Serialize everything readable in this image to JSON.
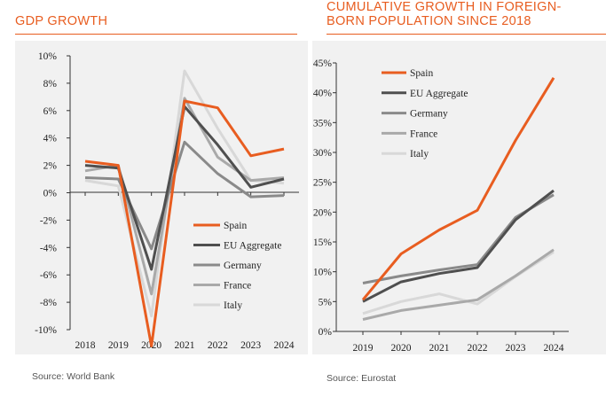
{
  "chart_data": [
    {
      "type": "line",
      "title": "GDP GROWTH",
      "source": "Source: World Bank",
      "xlabel": "",
      "ylabel": "",
      "x": [
        "2018",
        "2019",
        "2020",
        "2021",
        "2022",
        "2023",
        "2024"
      ],
      "ylim": [
        -10,
        10
      ],
      "yticks": [
        10,
        8,
        6,
        4,
        2,
        0,
        -2,
        -4,
        -6,
        -8,
        -10
      ],
      "ytick_labels": [
        "10%",
        "8%",
        "6%",
        "4%",
        "2%",
        "0%",
        "-2%",
        "-4%",
        "-6%",
        "-8%",
        "-10%"
      ],
      "grid": false,
      "legend_position": "bottom-right",
      "series": [
        {
          "name": "Spain",
          "color": "#e85d20",
          "values": [
            2.3,
            2.0,
            -11.2,
            6.7,
            6.2,
            2.7,
            3.2
          ]
        },
        {
          "name": "EU Aggregate",
          "color": "#4f4f4f",
          "values": [
            2.0,
            1.8,
            -5.6,
            6.3,
            3.5,
            0.4,
            1.0
          ]
        },
        {
          "name": "Germany",
          "color": "#8a8a8a",
          "values": [
            1.1,
            1.0,
            -4.1,
            3.7,
            1.4,
            -0.3,
            -0.2
          ]
        },
        {
          "name": "France",
          "color": "#a9a9a9",
          "values": [
            1.6,
            2.0,
            -7.4,
            6.9,
            2.6,
            0.9,
            1.1
          ]
        },
        {
          "name": "Italy",
          "color": "#d8d8d8",
          "values": [
            0.9,
            0.5,
            -9.0,
            8.9,
            4.7,
            0.9,
            0.7
          ]
        }
      ]
    },
    {
      "type": "line",
      "title": "CUMULATIVE GROWTH IN FOREIGN-BORN POPULATION SINCE 2018",
      "title_lines": [
        "CUMULATIVE GROWTH IN FOREIGN-",
        "BORN POPULATION SINCE 2018"
      ],
      "source": "Source: Eurostat",
      "xlabel": "",
      "ylabel": "",
      "x": [
        "2019",
        "2020",
        "2021",
        "2022",
        "2023",
        "2024"
      ],
      "ylim": [
        0,
        45
      ],
      "yticks": [
        45,
        40,
        35,
        30,
        25,
        20,
        15,
        10,
        5,
        0
      ],
      "ytick_labels": [
        "45%",
        "40%",
        "35%",
        "30%",
        "25%",
        "20%",
        "15%",
        "10%",
        "5%",
        "0%"
      ],
      "grid": false,
      "legend_position": "top-left",
      "series": [
        {
          "name": "Spain",
          "color": "#e85d20",
          "values": [
            5.3,
            13.0,
            17.0,
            20.3,
            32.0,
            42.5
          ]
        },
        {
          "name": "EU Aggregate",
          "color": "#4f4f4f",
          "values": [
            5.0,
            8.3,
            9.7,
            10.7,
            18.7,
            23.6
          ]
        },
        {
          "name": "Germany",
          "color": "#8a8a8a",
          "values": [
            8.1,
            9.3,
            10.3,
            11.2,
            19.1,
            22.9
          ]
        },
        {
          "name": "France",
          "color": "#a9a9a9",
          "values": [
            2.0,
            3.5,
            4.4,
            5.3,
            9.3,
            13.7
          ]
        },
        {
          "name": "Italy",
          "color": "#d8d8d8",
          "values": [
            3.0,
            5.0,
            6.3,
            4.6,
            9.2,
            13.3
          ]
        }
      ]
    }
  ]
}
